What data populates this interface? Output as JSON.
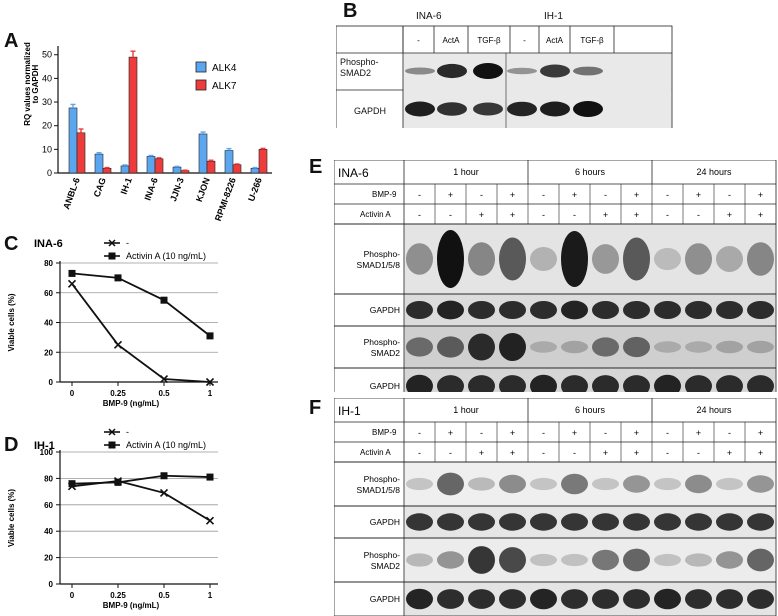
{
  "panels": {
    "A": "A",
    "B": "B",
    "C": "C",
    "D": "D",
    "E": "E",
    "F": "F"
  },
  "panelA": {
    "ylabel_line1": "RQ values normalized",
    "ylabel_line2": "to GAPDH",
    "legend": [
      "ALK4",
      "ALK7"
    ],
    "colors": {
      "alk4": "#5aa7ef",
      "alk7": "#ee3c3c"
    }
  },
  "panelB": {
    "groups": [
      "INA-6",
      "IH-1"
    ],
    "lanes": [
      "-",
      "ActA",
      "TGF-β",
      "-",
      "ActA",
      "TGF-β"
    ],
    "rows": [
      "Phospho-SMAD2",
      "GAPDH"
    ]
  },
  "panelC": {
    "cell_line": "INA-6",
    "legend": [
      "-",
      "Activin A (10 ng/mL)"
    ]
  },
  "panelD": {
    "cell_line": "IH-1",
    "legend": [
      "-",
      "Activin A (10 ng/mL)"
    ]
  },
  "panelE": {
    "cell_line": "INA-6",
    "timepoints": [
      "1 hour",
      "6 hours",
      "24 hours"
    ],
    "row_labels": [
      "BMP-9",
      "Activin A"
    ],
    "bmp9": [
      "-",
      "+",
      "-",
      "+",
      "-",
      "+",
      "-",
      "+",
      "-",
      "+",
      "-",
      "+"
    ],
    "activin": [
      "-",
      "-",
      "+",
      "+",
      "-",
      "-",
      "+",
      "+",
      "-",
      "-",
      "+",
      "+"
    ],
    "blots": [
      "Phospho-SMAD1/5/8",
      "GAPDH",
      "Phospho-SMAD2",
      "GAPDH"
    ]
  },
  "panelF": {
    "cell_line": "IH-1",
    "timepoints": [
      "1 hour",
      "6 hours",
      "24 hours"
    ],
    "row_labels": [
      "BMP-9",
      "Activin A"
    ],
    "bmp9": [
      "-",
      "+",
      "-",
      "+",
      "-",
      "+",
      "-",
      "+",
      "-",
      "+",
      "-",
      "+"
    ],
    "activin": [
      "-",
      "-",
      "+",
      "+",
      "-",
      "-",
      "+",
      "+",
      "-",
      "-",
      "+",
      "+"
    ],
    "blots": [
      "Phospho-SMAD1/5/8",
      "GAPDH",
      "Phospho-SMAD2",
      "GAPDH"
    ]
  },
  "chart_data": [
    {
      "type": "bar",
      "categories": [
        "ANBL-6",
        "CAG",
        "IH-1",
        "INA-6",
        "JJN-3",
        "KJON",
        "RPMI-8226",
        "U-266"
      ],
      "series": [
        {
          "name": "ALK4",
          "values": [
            27.5,
            8,
            3,
            7,
            2.5,
            16.5,
            9.5,
            2
          ]
        },
        {
          "name": "ALK7",
          "values": [
            17,
            2,
            49,
            6,
            1,
            5,
            3.5,
            10
          ]
        }
      ],
      "yticks": [
        0,
        10,
        20,
        30,
        40,
        50
      ],
      "ylim": [
        0,
        52
      ]
    },
    {
      "type": "line",
      "x": [
        0,
        0.25,
        0.5,
        1
      ],
      "xticks": [
        "0",
        "0.25",
        "0.5",
        "1"
      ],
      "xlabel": "BMP-9 (ng/mL)",
      "ylabel": "Viable cells (%)",
      "yticks": [
        0,
        20,
        40,
        60,
        80
      ],
      "ylim": [
        0,
        80
      ],
      "series": [
        {
          "name": "-",
          "values": [
            66,
            25,
            2,
            0
          ]
        },
        {
          "name": "Activin A (10 ng/mL)",
          "values": [
            73,
            70,
            55,
            31
          ]
        }
      ]
    },
    {
      "type": "line",
      "x": [
        0,
        0.25,
        0.5,
        1
      ],
      "xticks": [
        "0",
        "0.25",
        "0.5",
        "1"
      ],
      "xlabel": "BMP-9 (ng/mL)",
      "ylabel": "Viable cells (%)",
      "yticks": [
        0,
        20,
        40,
        60,
        80,
        100
      ],
      "ylim": [
        0,
        100
      ],
      "series": [
        {
          "name": "-",
          "values": [
            74,
            78,
            69,
            48
          ]
        },
        {
          "name": "Activin A (10 ng/mL)",
          "values": [
            76,
            77,
            82,
            81
          ]
        }
      ]
    }
  ]
}
